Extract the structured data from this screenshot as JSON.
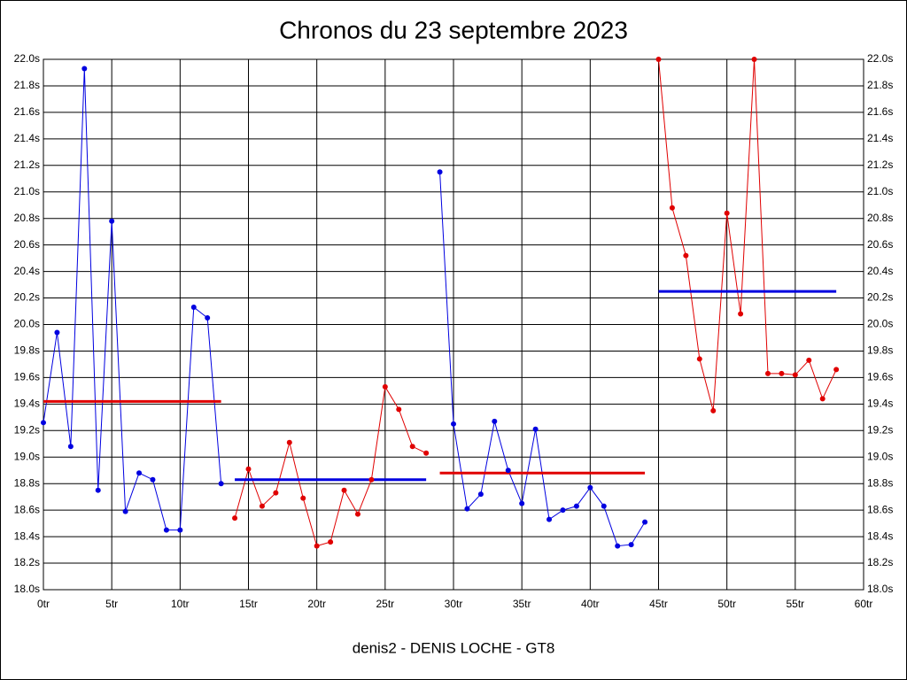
{
  "chart_data": {
    "type": "line",
    "title": "Chronos du 23 septembre 2023",
    "xlabel": "denis2 - DENIS LOCHE - GT8",
    "xlim": [
      0,
      60
    ],
    "xticks": [
      {
        "value": 0,
        "label": "0tr"
      },
      {
        "value": 5,
        "label": "5tr"
      },
      {
        "value": 10,
        "label": "10tr"
      },
      {
        "value": 15,
        "label": "15tr"
      },
      {
        "value": 20,
        "label": "20tr"
      },
      {
        "value": 25,
        "label": "25tr"
      },
      {
        "value": 30,
        "label": "30tr"
      },
      {
        "value": 35,
        "label": "35tr"
      },
      {
        "value": 40,
        "label": "40tr"
      },
      {
        "value": 45,
        "label": "45tr"
      },
      {
        "value": 50,
        "label": "50tr"
      },
      {
        "value": 55,
        "label": "55tr"
      },
      {
        "value": 60,
        "label": "60tr"
      }
    ],
    "ylim": [
      18.0,
      22.0
    ],
    "yticks": [
      {
        "value": 18.0,
        "label": "18.0s"
      },
      {
        "value": 18.2,
        "label": "18.2s"
      },
      {
        "value": 18.4,
        "label": "18.4s"
      },
      {
        "value": 18.6,
        "label": "18.6s"
      },
      {
        "value": 18.8,
        "label": "18.8s"
      },
      {
        "value": 19.0,
        "label": "19.0s"
      },
      {
        "value": 19.2,
        "label": "19.2s"
      },
      {
        "value": 19.4,
        "label": "19.4s"
      },
      {
        "value": 19.6,
        "label": "19.6s"
      },
      {
        "value": 19.8,
        "label": "19.8s"
      },
      {
        "value": 20.0,
        "label": "20.0s"
      },
      {
        "value": 20.2,
        "label": "20.2s"
      },
      {
        "value": 20.4,
        "label": "20.4s"
      },
      {
        "value": 20.6,
        "label": "20.6s"
      },
      {
        "value": 20.8,
        "label": "20.8s"
      },
      {
        "value": 21.0,
        "label": "21.0s"
      },
      {
        "value": 21.2,
        "label": "21.2s"
      },
      {
        "value": 21.4,
        "label": "21.4s"
      },
      {
        "value": 21.6,
        "label": "21.6s"
      },
      {
        "value": 21.8,
        "label": "21.8s"
      },
      {
        "value": 22.0,
        "label": "22.0s"
      }
    ],
    "grid": true,
    "series": [
      {
        "color": "#0000e0",
        "mean_color": "#e00000",
        "mean": 19.42,
        "x": [
          0,
          1,
          2,
          3,
          4,
          5,
          6,
          7,
          8,
          9,
          10,
          11,
          12,
          13
        ],
        "values": [
          19.26,
          19.94,
          19.08,
          21.93,
          18.75,
          20.78,
          18.59,
          18.88,
          18.83,
          18.45,
          18.45,
          20.13,
          20.05,
          18.8
        ]
      },
      {
        "color": "#e00000",
        "mean_color": "#0000e0",
        "mean": 18.83,
        "x": [
          14,
          15,
          16,
          17,
          18,
          19,
          20,
          21,
          22,
          23,
          24,
          25,
          26,
          27,
          28
        ],
        "values": [
          18.54,
          18.91,
          18.63,
          18.73,
          19.11,
          18.69,
          18.33,
          18.36,
          18.75,
          18.57,
          18.83,
          19.53,
          19.36,
          19.08,
          19.03
        ]
      },
      {
        "color": "#0000e0",
        "mean_color": "#e00000",
        "mean": 18.88,
        "x": [
          29,
          30,
          31,
          32,
          33,
          34,
          35,
          36,
          37,
          38,
          39,
          40,
          41,
          42,
          43,
          44
        ],
        "values": [
          21.15,
          19.25,
          18.61,
          18.72,
          19.27,
          18.9,
          18.65,
          19.21,
          18.53,
          18.6,
          18.63,
          18.77,
          18.63,
          18.33,
          18.34,
          18.51
        ]
      },
      {
        "color": "#e00000",
        "mean_color": "#0000e0",
        "mean": 20.25,
        "x": [
          45,
          46,
          47,
          48,
          49,
          50,
          51,
          52,
          53,
          54,
          55,
          56,
          57,
          58
        ],
        "values": [
          22.0,
          20.88,
          20.52,
          19.74,
          19.35,
          20.84,
          20.08,
          22.0,
          19.63,
          19.63,
          19.62,
          19.73,
          19.44,
          19.66
        ]
      }
    ]
  }
}
